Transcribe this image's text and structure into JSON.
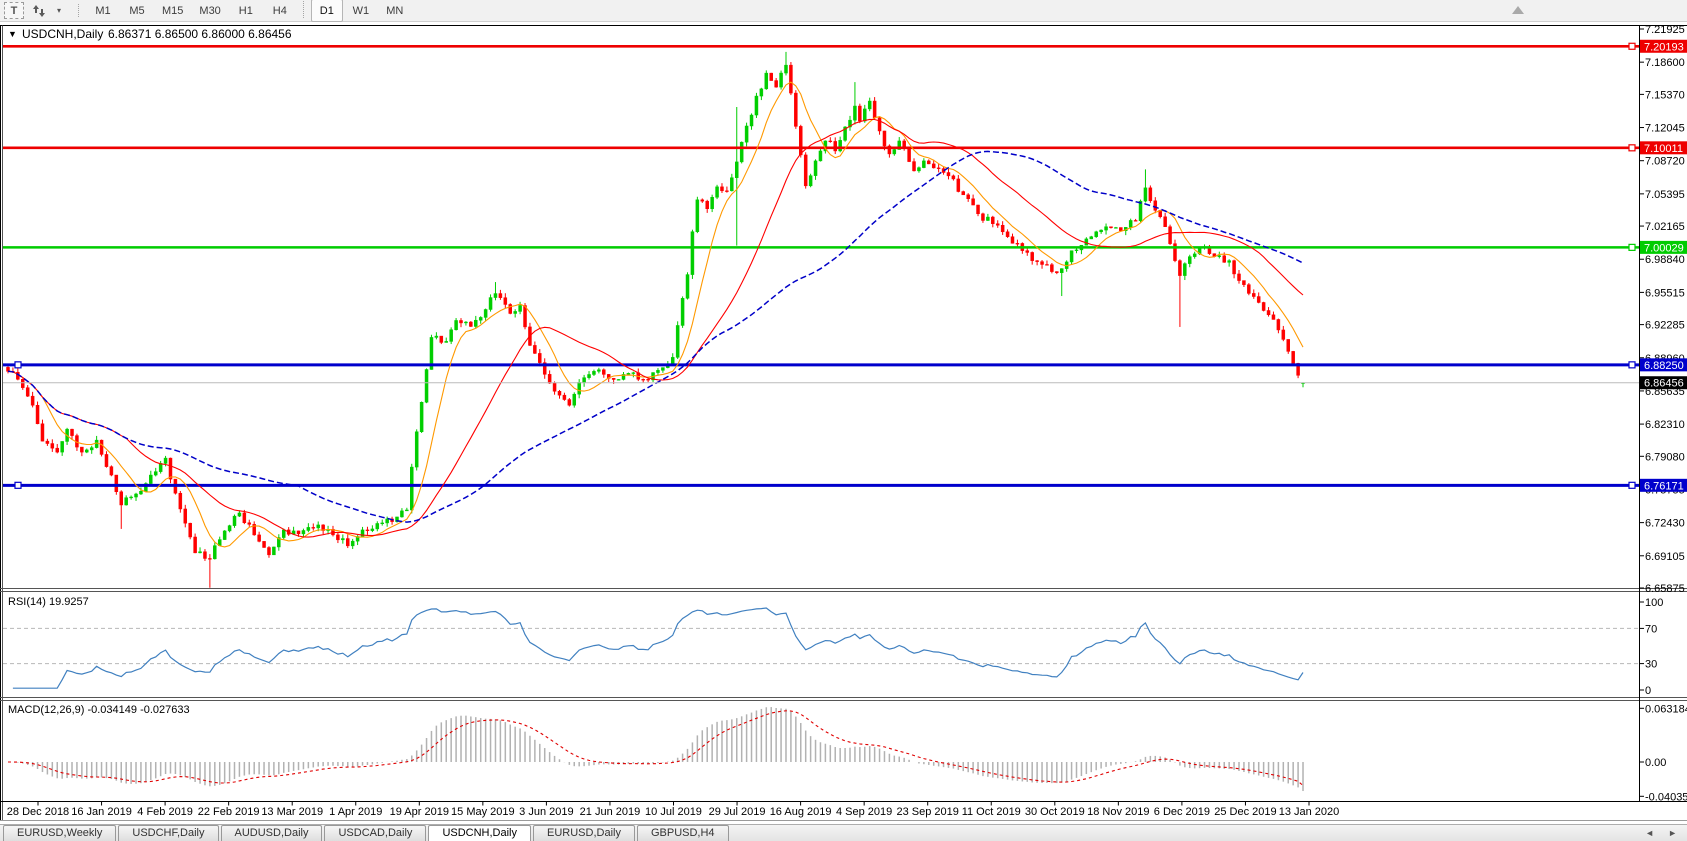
{
  "icons": {
    "text_tool": "T",
    "dropdown_caret": "▾",
    "collapse_caret": "▼",
    "tab_scroll_left": "◄",
    "tab_scroll_right": "►"
  },
  "toolbar": {
    "timeframes": [
      "M1",
      "M5",
      "M15",
      "M30",
      "H1",
      "H4",
      "D1",
      "W1",
      "MN"
    ],
    "active_timeframe": "D1"
  },
  "chart": {
    "symbol_period": "USDCNH,Daily",
    "ohlc_text": "6.86371 6.86500 6.86000 6.86456"
  },
  "indicators": {
    "rsi": {
      "label": "RSI(14) 19.9257",
      "period": 14,
      "current": 19.9257,
      "color": "#4080C0",
      "scale": [
        {
          "label": "100",
          "v": 100
        },
        {
          "label": "70",
          "v": 70
        },
        {
          "label": "30",
          "v": 30
        },
        {
          "label": "0",
          "v": 0
        }
      ],
      "dashed_levels": [
        70,
        30
      ]
    },
    "macd": {
      "label": "MACD(12,26,9) -0.034149 -0.027633",
      "fast": 12,
      "slow": 26,
      "signal_period": 9,
      "macd_value": -0.034149,
      "signal_value": -0.027633,
      "histogram_color": "#b2b2b2",
      "signal_color": "#E00000",
      "scale": [
        {
          "label": "0.063184",
          "v": 0.063184
        },
        {
          "label": "0.00",
          "v": 0
        },
        {
          "label": "-0.040355",
          "v": -0.040355
        }
      ]
    }
  },
  "tabs": {
    "items": [
      "EURUSD,Weekly",
      "USDCHF,Daily",
      "AUDUSD,Daily",
      "USDCAD,Daily",
      "USDCNH,Daily",
      "EURUSD,Daily",
      "GBPUSD,H4"
    ],
    "active_index": 4
  },
  "chart_data": {
    "type": "candlestick",
    "symbol": "USDCNH",
    "timeframe": "Daily",
    "current_bar": {
      "open": 6.86371,
      "high": 6.865,
      "low": 6.86,
      "close": 6.86456
    },
    "bars_total": 264,
    "up_color": "#00CE00",
    "down_color": "#FF0000",
    "close_anchors": [
      [
        0,
        6.876
      ],
      [
        2,
        6.868
      ],
      [
        5,
        6.842
      ],
      [
        7,
        6.806
      ],
      [
        10,
        6.795
      ],
      [
        12,
        6.818
      ],
      [
        15,
        6.795
      ],
      [
        18,
        6.807
      ],
      [
        21,
        6.772
      ],
      [
        23,
        6.742
      ],
      [
        26,
        6.753
      ],
      [
        29,
        6.772
      ],
      [
        32,
        6.789
      ],
      [
        35,
        6.738
      ],
      [
        38,
        6.694
      ],
      [
        41,
        6.688
      ],
      [
        44,
        6.716
      ],
      [
        47,
        6.734
      ],
      [
        50,
        6.712
      ],
      [
        53,
        6.692
      ],
      [
        56,
        6.717
      ],
      [
        59,
        6.713
      ],
      [
        63,
        6.722
      ],
      [
        66,
        6.712
      ],
      [
        69,
        6.701
      ],
      [
        72,
        6.717
      ],
      [
        76,
        6.724
      ],
      [
        79,
        6.73
      ],
      [
        81,
        6.737
      ],
      [
        82,
        6.78
      ],
      [
        84,
        6.845
      ],
      [
        86,
        6.91
      ],
      [
        89,
        6.906
      ],
      [
        91,
        6.927
      ],
      [
        94,
        6.921
      ],
      [
        97,
        6.938
      ],
      [
        99,
        6.954
      ],
      [
        102,
        6.934
      ],
      [
        104,
        6.942
      ],
      [
        106,
        6.902
      ],
      [
        109,
        6.873
      ],
      [
        111,
        6.856
      ],
      [
        114,
        6.842
      ],
      [
        116,
        6.865
      ],
      [
        119,
        6.876
      ],
      [
        122,
        6.869
      ],
      [
        126,
        6.874
      ],
      [
        129,
        6.868
      ],
      [
        132,
        6.877
      ],
      [
        135,
        6.89
      ],
      [
        136,
        6.922
      ],
      [
        138,
        6.973
      ],
      [
        139,
        7.016
      ],
      [
        140,
        7.048
      ],
      [
        142,
        7.039
      ],
      [
        144,
        7.061
      ],
      [
        146,
        7.057
      ],
      [
        148,
        7.086
      ],
      [
        150,
        7.122
      ],
      [
        152,
        7.152
      ],
      [
        154,
        7.175
      ],
      [
        156,
        7.161
      ],
      [
        158,
        7.183
      ],
      [
        159,
        7.155
      ],
      [
        161,
        7.093
      ],
      [
        162,
        7.062
      ],
      [
        164,
        7.087
      ],
      [
        166,
        7.107
      ],
      [
        168,
        7.097
      ],
      [
        170,
        7.121
      ],
      [
        172,
        7.142
      ],
      [
        173,
        7.127
      ],
      [
        175,
        7.147
      ],
      [
        177,
        7.117
      ],
      [
        179,
        7.094
      ],
      [
        181,
        7.107
      ],
      [
        184,
        7.077
      ],
      [
        186,
        7.087
      ],
      [
        188,
        7.08
      ],
      [
        191,
        7.072
      ],
      [
        194,
        7.053
      ],
      [
        197,
        7.034
      ],
      [
        200,
        7.024
      ],
      [
        203,
        7.011
      ],
      [
        206,
        6.997
      ],
      [
        209,
        6.986
      ],
      [
        212,
        6.976
      ],
      [
        214,
        6.979
      ],
      [
        216,
        6.997
      ],
      [
        220,
        7.011
      ],
      [
        223,
        7.021
      ],
      [
        226,
        7.017
      ],
      [
        229,
        7.027
      ],
      [
        231,
        7.06
      ],
      [
        232,
        7.047
      ],
      [
        235,
        7.021
      ],
      [
        237,
        6.987
      ],
      [
        238,
        6.972
      ],
      [
        240,
        6.991
      ],
      [
        243,
        7.001
      ],
      [
        245,
        6.991
      ],
      [
        248,
        6.987
      ],
      [
        250,
        6.967
      ],
      [
        253,
        6.951
      ],
      [
        255,
        6.937
      ],
      [
        257,
        6.928
      ],
      [
        259,
        6.908
      ],
      [
        260,
        6.896
      ],
      [
        261,
        6.884
      ],
      [
        262,
        6.872
      ],
      [
        263,
        6.86456
      ]
    ],
    "wick_events": [
      {
        "bar": 23,
        "low": 6.718
      },
      {
        "bar": 41,
        "low": 6.659
      },
      {
        "bar": 99,
        "high": 6.9655
      },
      {
        "bar": 148,
        "low": 7.002,
        "high": 7.141
      },
      {
        "bar": 158,
        "high": 7.1963
      },
      {
        "bar": 172,
        "high": 7.166
      },
      {
        "bar": 214,
        "low": 6.9515
      },
      {
        "bar": 231,
        "high": 7.0785
      },
      {
        "bar": 238,
        "low": 6.9205
      }
    ],
    "moving_averages": [
      {
        "name": "fast-ma",
        "period": 8,
        "color": "#FF9900",
        "width": 1.1,
        "dash": ""
      },
      {
        "name": "mid-ma",
        "period": 25,
        "color": "#FF0000",
        "width": 1.1,
        "dash": ""
      },
      {
        "name": "slow-ma",
        "period": 60,
        "color": "#0000C8",
        "width": 1.5,
        "dash": "6 3"
      }
    ],
    "horizontal_lines": [
      {
        "price": 7.20193,
        "label": "7.20193",
        "color": "#EE0000",
        "width": 2.6,
        "markers": [
          "right"
        ]
      },
      {
        "price": 7.10011,
        "label": "7.10011",
        "color": "#EE0000",
        "width": 2.6,
        "markers": [
          "right"
        ]
      },
      {
        "price": 7.00029,
        "label": "7.00029",
        "color": "#00CC00",
        "width": 2.6,
        "markers": [
          "right"
        ]
      },
      {
        "price": 6.8825,
        "label": "6.88250",
        "color": "#0000CC",
        "width": 3,
        "markers": [
          "left",
          "right"
        ]
      },
      {
        "price": 6.76171,
        "label": "6.76171",
        "color": "#0000CC",
        "width": 3,
        "markers": [
          "left",
          "right"
        ]
      }
    ],
    "current_price": {
      "value": 6.86456,
      "label": "6.86456",
      "line_color": "#BBBBBB",
      "box_color": "#000000"
    },
    "price_axis_ticks": [
      "7.21925",
      "7.18600",
      "7.15370",
      "7.12045",
      "7.08720",
      "7.05395",
      "7.02165",
      "6.98840",
      "6.95515",
      "6.92285",
      "6.88960",
      "6.85635",
      "6.82310",
      "6.79080",
      "6.75755",
      "6.72430",
      "6.69105",
      "6.65875"
    ],
    "date_axis": [
      "28 Dec 2018",
      "16 Jan 2019",
      "4 Feb 2019",
      "22 Feb 2019",
      "13 Mar 2019",
      "1 Apr 2019",
      "19 Apr 2019",
      "15 May 2019",
      "3 Jun 2019",
      "21 Jun 2019",
      "10 Jul 2019",
      "29 Jul 2019",
      "16 Aug 2019",
      "4 Sep 2019",
      "23 Sep 2019",
      "11 Oct 2019",
      "30 Oct 2019",
      "18 Nov 2019",
      "6 Dec 2019",
      "25 Dec 2019",
      "13 Jan 2020"
    ]
  }
}
